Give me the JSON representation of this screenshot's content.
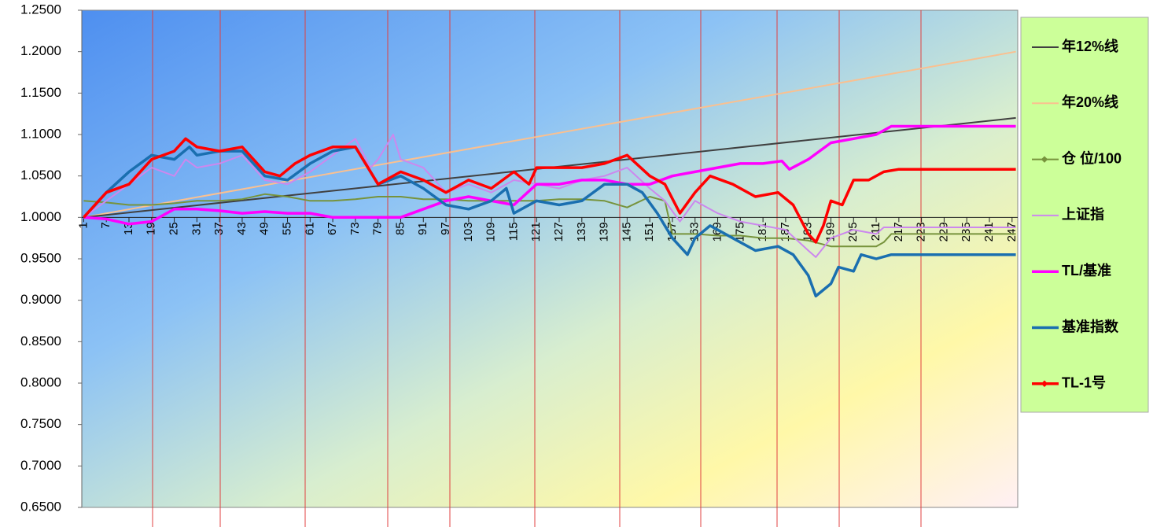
{
  "chart_data": {
    "type": "line",
    "xlim": [
      0.5,
      248.5
    ],
    "xticks": [
      1,
      7,
      13,
      19,
      25,
      31,
      37,
      43,
      49,
      55,
      61,
      67,
      73,
      79,
      85,
      91,
      97,
      103,
      109,
      115,
      121,
      127,
      133,
      139,
      145,
      151,
      157,
      163,
      169,
      175,
      181,
      187,
      193,
      199,
      205,
      211,
      217,
      223,
      229,
      235,
      241,
      247
    ],
    "ylim": [
      0.65,
      1.25
    ],
    "yticks": [
      {
        "value": 0.65,
        "label": "0.6500"
      },
      {
        "value": 0.7,
        "label": "0.7000"
      },
      {
        "value": 0.75,
        "label": "0.7500"
      },
      {
        "value": 0.8,
        "label": "0.8000"
      },
      {
        "value": 0.85,
        "label": "0.8500"
      },
      {
        "value": 0.9,
        "label": "0.9000"
      },
      {
        "value": 0.95,
        "label": "0.9500"
      },
      {
        "value": 1,
        "label": "1.0000"
      },
      {
        "value": 1.05,
        "label": "1.0500"
      },
      {
        "value": 1.1,
        "label": "1.1000"
      },
      {
        "value": 1.15,
        "label": "1.1500"
      },
      {
        "value": 1.2,
        "label": "1.2000"
      },
      {
        "value": 1.25,
        "label": "1.2500"
      }
    ],
    "x_axis_crosses": 1,
    "legend": "right",
    "series": [
      {
        "name": "年12%线",
        "color": "#404040",
        "x": [
          1,
          248
        ],
        "values": [
          1.0,
          1.12
        ]
      },
      {
        "name": "年20%线",
        "color": "#fac090",
        "x": [
          1,
          248
        ],
        "values": [
          1.0,
          1.2
        ]
      },
      {
        "name": "仓 位/100",
        "color": "#77933c",
        "x": [
          1,
          7,
          13,
          19,
          25,
          31,
          37,
          43,
          49,
          55,
          61,
          67,
          73,
          79,
          85,
          91,
          97,
          103,
          109,
          115,
          121,
          127,
          133,
          139,
          145,
          151,
          155,
          157,
          163,
          169,
          175,
          181,
          187,
          193,
          199,
          205,
          211,
          213,
          215,
          217,
          223,
          229,
          235,
          241,
          248
        ],
        "values": [
          1.02,
          1.018,
          1.015,
          1.015,
          1.017,
          1.02,
          1.02,
          1.022,
          1.028,
          1.025,
          1.02,
          1.02,
          1.022,
          1.025,
          1.025,
          1.022,
          1.022,
          1.02,
          1.02,
          1.02,
          1.02,
          1.022,
          1.022,
          1.02,
          1.012,
          1.025,
          1.02,
          0.98,
          0.98,
          0.978,
          0.978,
          0.975,
          0.975,
          0.972,
          0.965,
          0.965,
          0.965,
          0.97,
          0.98,
          0.98,
          0.98,
          0.98,
          0.98,
          0.98,
          0.98
        ]
      },
      {
        "name": "上证指",
        "color": "#cc88ee",
        "x": [
          1,
          7,
          13,
          19,
          25,
          28,
          31,
          37,
          43,
          49,
          55,
          61,
          67,
          73,
          77,
          79,
          83,
          85,
          91,
          97,
          103,
          109,
          115,
          121,
          127,
          133,
          139,
          145,
          151,
          155,
          159,
          163,
          169,
          175,
          181,
          187,
          193,
          195,
          199,
          205,
          211,
          213,
          217,
          223,
          229,
          235,
          241,
          248
        ],
        "values": [
          1.0,
          1.02,
          1.04,
          1.06,
          1.05,
          1.07,
          1.06,
          1.065,
          1.075,
          1.045,
          1.04,
          1.055,
          1.075,
          1.095,
          1.06,
          1.07,
          1.1,
          1.07,
          1.06,
          1.03,
          1.04,
          1.03,
          1.045,
          1.04,
          1.035,
          1.045,
          1.05,
          1.06,
          1.035,
          1.02,
          0.995,
          1.02,
          1.005,
          0.995,
          0.99,
          0.985,
          0.96,
          0.952,
          0.975,
          0.985,
          0.98,
          0.988,
          0.988,
          0.988,
          0.988,
          0.988,
          0.988,
          0.988
        ]
      },
      {
        "name": "TL/基准",
        "color": "#ff00ff",
        "x": [
          1,
          7,
          13,
          19,
          25,
          31,
          37,
          43,
          49,
          55,
          61,
          67,
          73,
          79,
          85,
          91,
          97,
          103,
          109,
          115,
          121,
          127,
          133,
          139,
          145,
          151,
          157,
          163,
          169,
          175,
          181,
          186,
          188,
          193,
          199,
          205,
          211,
          215,
          223,
          229,
          235,
          241,
          248
        ],
        "values": [
          1.0,
          0.998,
          0.992,
          0.995,
          1.01,
          1.01,
          1.008,
          1.005,
          1.007,
          1.005,
          1.005,
          1.0,
          1.0,
          1.0,
          1.0,
          1.01,
          1.02,
          1.025,
          1.02,
          1.015,
          1.04,
          1.04,
          1.045,
          1.045,
          1.04,
          1.04,
          1.05,
          1.055,
          1.06,
          1.065,
          1.065,
          1.068,
          1.058,
          1.07,
          1.09,
          1.095,
          1.1,
          1.11,
          1.11,
          1.11,
          1.11,
          1.11,
          1.11
        ]
      },
      {
        "name": "基准指数",
        "color": "#1a6fb0",
        "x": [
          1,
          7,
          13,
          19,
          25,
          29,
          31,
          37,
          43,
          49,
          55,
          61,
          67,
          73,
          79,
          85,
          91,
          97,
          103,
          109,
          113,
          115,
          121,
          127,
          133,
          139,
          145,
          149,
          153,
          157,
          161,
          163,
          167,
          173,
          179,
          185,
          189,
          193,
          195,
          199,
          201,
          205,
          207,
          211,
          215,
          223,
          229,
          235,
          241,
          248
        ],
        "values": [
          1.0,
          1.03,
          1.055,
          1.075,
          1.07,
          1.085,
          1.075,
          1.08,
          1.08,
          1.05,
          1.045,
          1.065,
          1.08,
          1.085,
          1.04,
          1.05,
          1.035,
          1.015,
          1.01,
          1.02,
          1.035,
          1.005,
          1.02,
          1.015,
          1.02,
          1.04,
          1.04,
          1.03,
          1.005,
          0.975,
          0.955,
          0.975,
          0.99,
          0.975,
          0.96,
          0.965,
          0.955,
          0.93,
          0.905,
          0.92,
          0.94,
          0.935,
          0.955,
          0.95,
          0.955,
          0.955,
          0.955,
          0.955,
          0.955,
          0.955
        ]
      },
      {
        "name": "TL-1号",
        "color": "#ff0000",
        "x": [
          1,
          7,
          13,
          19,
          25,
          28,
          31,
          37,
          43,
          49,
          53,
          57,
          61,
          67,
          73,
          79,
          85,
          91,
          97,
          103,
          109,
          115,
          119,
          121,
          127,
          133,
          139,
          145,
          151,
          155,
          159,
          163,
          167,
          173,
          179,
          185,
          189,
          193,
          195,
          197,
          199,
          202,
          205,
          209,
          213,
          217,
          223,
          229,
          235,
          241,
          248
        ],
        "values": [
          1.0,
          1.03,
          1.04,
          1.07,
          1.08,
          1.095,
          1.085,
          1.08,
          1.085,
          1.055,
          1.05,
          1.065,
          1.075,
          1.085,
          1.085,
          1.04,
          1.055,
          1.045,
          1.03,
          1.045,
          1.035,
          1.055,
          1.04,
          1.06,
          1.06,
          1.06,
          1.065,
          1.075,
          1.05,
          1.04,
          1.005,
          1.03,
          1.05,
          1.04,
          1.025,
          1.03,
          1.015,
          0.98,
          0.97,
          0.99,
          1.02,
          1.015,
          1.045,
          1.045,
          1.055,
          1.058,
          1.058,
          1.058,
          1.058,
          1.058,
          1.058
        ]
      }
    ]
  }
}
